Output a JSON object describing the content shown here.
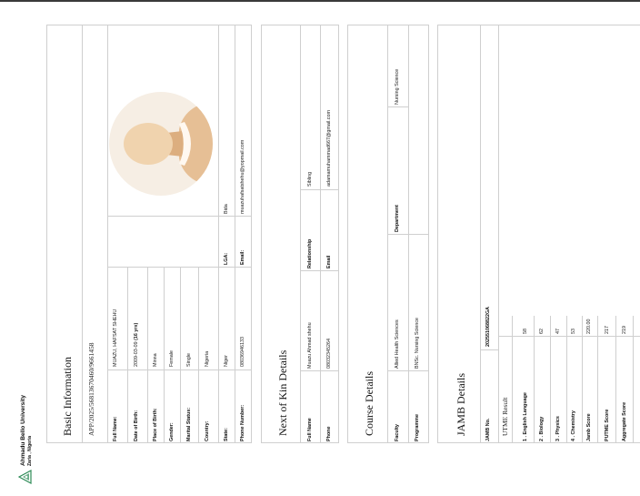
{
  "header": {
    "university": "Ahmadu Bello University",
    "location": "Zaria , Nigeria"
  },
  "basic": {
    "title": "Basic Information",
    "ref": "APP/2025/56813670460/9661458",
    "fields": [
      {
        "label": "Full Name:",
        "value": "MUAZU, HAFSAT SHEHU"
      },
      {
        "label": "Date of Birth:",
        "value": "2009-03-09",
        "age": "(16 yrs)"
      },
      {
        "label": "Place of Birth:",
        "value": "Minna"
      },
      {
        "label": "Gender:",
        "value": "Female"
      },
      {
        "label": "Marital Status:",
        "value": "Single"
      },
      {
        "label": "Country:",
        "value": "Nigeria"
      },
      {
        "label": "State:",
        "value": "Niger",
        "label2": "LGA:",
        "value2": "Bida"
      },
      {
        "label": "Phone Number:",
        "value": "08036946133",
        "label2": "Email:",
        "value2": "muazuhafsatshehu@yopmail.com"
      }
    ]
  },
  "next_of_kin": {
    "title": "Next of Kin Details",
    "fields": [
      {
        "label": "Full Name",
        "value": "Muazu Ahmad shehu",
        "label2": "Relationship",
        "value2": "Sibling"
      },
      {
        "label": "Phone",
        "value": "08032345264",
        "label2": "Email",
        "value2": "adamamuhammad667@gmail.com"
      }
    ]
  },
  "course": {
    "title": "Course Details",
    "fields": [
      {
        "label": "Faculty",
        "value": "Allied Health Sciences",
        "label2": "Department",
        "value2": "Nursing Science"
      },
      {
        "label": "Programme",
        "value": "BNSc. Nursing Science"
      }
    ]
  },
  "jamb": {
    "title": "JAMB Details",
    "jamb_no_label": "JAMB No.",
    "jamb_no": "202551068822GA",
    "utme_label": "UTME Result",
    "results": [
      {
        "label": "1 . English Language",
        "value": "58"
      },
      {
        "label": "2 . Biology",
        "value": "62"
      },
      {
        "label": "3 . Physics",
        "value": "47"
      },
      {
        "label": "4 . Chemistry",
        "value": "53"
      },
      {
        "label": "Jamb Score",
        "value": "220.00"
      },
      {
        "label": "PUTME Score",
        "value": "217"
      },
      {
        "label": "Aggregate Score",
        "value": "219"
      }
    ]
  },
  "colors": {
    "rule": "#cfcfcf",
    "skin": "#e6bf95",
    "skin_light": "#f0d3ae",
    "bg_circle": "#f6eee4",
    "logo": "#2e8b57"
  }
}
